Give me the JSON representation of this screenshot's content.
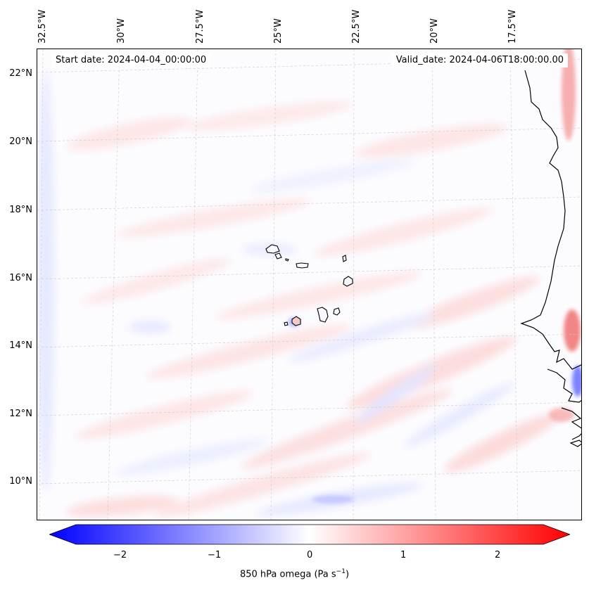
{
  "map": {
    "start_date": "Start date: 2024-04-04_00:00:00",
    "valid_date": "Valid_date: 2024-04-06T18:00:00.00",
    "longitude_labels": [
      "32.5°W",
      "30°W",
      "27.5°W",
      "25°W",
      "22.5°W",
      "20°W",
      "17.5°W"
    ],
    "latitude_labels": [
      "22°N",
      "20°N",
      "18°N",
      "16°N",
      "14°N",
      "12°N",
      "10°N"
    ],
    "variable": "850 hPa omega",
    "colormap": "bwr"
  },
  "colorbar": {
    "ticks": [
      "−2",
      "−1",
      "0",
      "1",
      "2"
    ],
    "label_main": "850 hPa omega (Pa s",
    "label_exp": "−1",
    "label_close": ")",
    "min_color": "#0000ff",
    "mid_color": "#ffffff",
    "max_color": "#ff0000",
    "range": [
      -2.6,
      2.6
    ],
    "extend": "both"
  }
}
